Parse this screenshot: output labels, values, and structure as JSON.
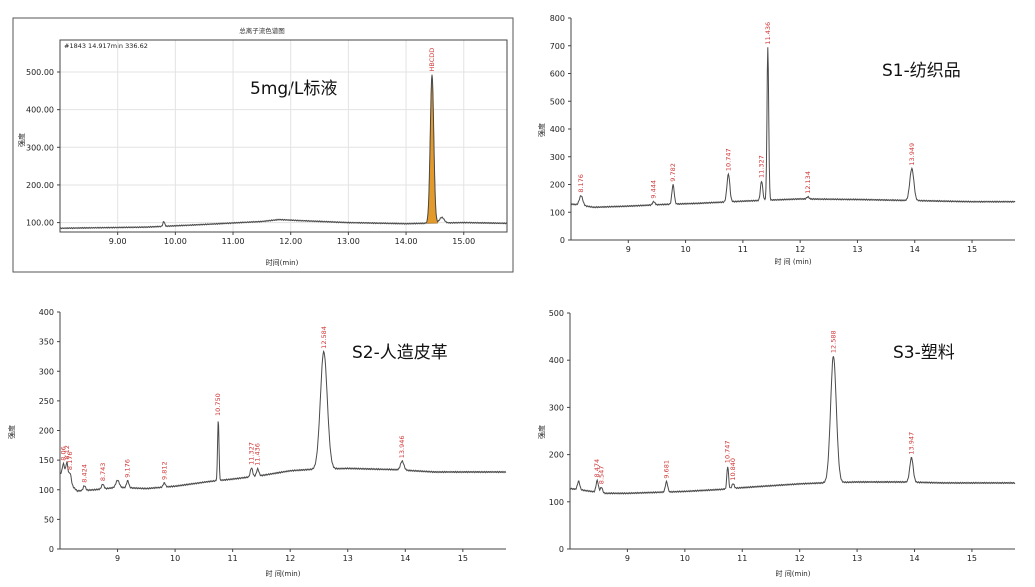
{
  "chart_data": [
    {
      "type": "line",
      "id": "c1",
      "title": "5mg/L标液",
      "subtitle": "总离子流色谱图",
      "info": "#1843  14.917min  336.62",
      "xlabel": "时间(min)",
      "ylabel": "强度",
      "xlim": [
        8.0,
        15.75
      ],
      "ylim": [
        75,
        585
      ],
      "xticks": [
        9.0,
        10.0,
        11.0,
        12.0,
        13.0,
        14.0,
        15.0
      ],
      "xtick_labels": [
        "9.00",
        "10.00",
        "11.00",
        "12.00",
        "13.00",
        "14.00",
        "15.00"
      ],
      "yticks": [
        100,
        200,
        300,
        400,
        500
      ],
      "ytick_labels": [
        "100.00",
        "200.00",
        "300.00",
        "400.00",
        "500.00"
      ],
      "baseline": [
        [
          8.0,
          85
        ],
        [
          9.5,
          88
        ],
        [
          10.5,
          95
        ],
        [
          11.5,
          103
        ],
        [
          11.8,
          108
        ],
        [
          12.2,
          105
        ],
        [
          13.0,
          100
        ],
        [
          14.0,
          97
        ],
        [
          15.0,
          100
        ],
        [
          15.75,
          98
        ]
      ],
      "peaks": [
        {
          "x": 9.8,
          "height": 13,
          "width": 0.015,
          "label": ""
        },
        {
          "x": 14.45,
          "height": 395,
          "width": 0.03,
          "label": "HBCDD",
          "filled": true
        },
        {
          "x": 14.62,
          "height": 15,
          "width": 0.04,
          "label": ""
        }
      ],
      "fill_color": "#e39a2b"
    },
    {
      "type": "line",
      "id": "c2",
      "title": "S1-纺织品",
      "xlabel": "时 间 (min)",
      "ylabel": "强度",
      "xlim": [
        8.0,
        15.75
      ],
      "ylim": [
        0,
        800
      ],
      "xticks": [
        9,
        10,
        11,
        12,
        13,
        14,
        15
      ],
      "xtick_labels": [
        "9",
        "10",
        "11",
        "12",
        "13",
        "14",
        "15"
      ],
      "yticks": [
        0,
        100,
        200,
        300,
        400,
        500,
        600,
        700,
        800
      ],
      "ytick_labels": [
        "0",
        "100",
        "200",
        "300",
        "400",
        "500",
        "600",
        "700",
        "800"
      ],
      "baseline": [
        [
          8.0,
          130
        ],
        [
          8.4,
          118
        ],
        [
          9.0,
          122
        ],
        [
          9.6,
          128
        ],
        [
          10.2,
          132
        ],
        [
          11.0,
          140
        ],
        [
          12.0,
          148
        ],
        [
          13.0,
          146
        ],
        [
          14.0,
          142
        ],
        [
          15.0,
          138
        ],
        [
          15.75,
          138
        ]
      ],
      "peaks": [
        {
          "x": 8.176,
          "height": 35,
          "width": 0.03,
          "label": "8.176"
        },
        {
          "x": 9.444,
          "height": 12,
          "width": 0.02,
          "label": "9.444"
        },
        {
          "x": 9.782,
          "height": 70,
          "width": 0.02,
          "label": "9.782"
        },
        {
          "x": 10.747,
          "height": 100,
          "width": 0.025,
          "label": "10.747"
        },
        {
          "x": 11.327,
          "height": 70,
          "width": 0.02,
          "label": "11.327"
        },
        {
          "x": 11.436,
          "height": 550,
          "width": 0.015,
          "label": "11.436"
        },
        {
          "x": 12.134,
          "height": 8,
          "width": 0.02,
          "label": "12.134"
        },
        {
          "x": 13.949,
          "height": 115,
          "width": 0.035,
          "label": "13.949"
        }
      ]
    },
    {
      "type": "line",
      "id": "c3",
      "title": "S2-人造皮革",
      "xlabel": "时 间(min)",
      "ylabel": "强度",
      "xlim": [
        8.0,
        15.75
      ],
      "ylim": [
        0,
        400
      ],
      "xticks": [
        9,
        10,
        11,
        12,
        13,
        14,
        15
      ],
      "xtick_labels": [
        "9",
        "10",
        "11",
        "12",
        "13",
        "14",
        "15"
      ],
      "yticks": [
        0,
        50,
        100,
        150,
        200,
        250,
        300,
        350,
        400
      ],
      "ytick_labels": [
        "0",
        "50",
        "100",
        "150",
        "200",
        "250",
        "300",
        "350",
        "400"
      ],
      "baseline": [
        [
          8.0,
          128
        ],
        [
          8.15,
          112
        ],
        [
          8.3,
          98
        ],
        [
          8.6,
          100
        ],
        [
          9.0,
          104
        ],
        [
          9.5,
          102
        ],
        [
          10.0,
          106
        ],
        [
          10.6,
          114
        ],
        [
          11.0,
          118
        ],
        [
          11.5,
          124
        ],
        [
          12.0,
          132
        ],
        [
          12.3,
          134
        ],
        [
          13.0,
          136
        ],
        [
          13.8,
          134
        ],
        [
          14.5,
          130
        ],
        [
          15.75,
          130
        ]
      ],
      "peaks": [
        {
          "x": 8.06,
          "height": 22,
          "width": 0.02,
          "label": "8.06"
        },
        {
          "x": 8.12,
          "height": 30,
          "width": 0.02,
          "label": "8.12"
        },
        {
          "x": 8.176,
          "height": 18,
          "width": 0.02,
          "label": "8.176"
        },
        {
          "x": 8.424,
          "height": 8,
          "width": 0.02,
          "label": "8.424"
        },
        {
          "x": 8.743,
          "height": 8,
          "width": 0.02,
          "label": "8.743"
        },
        {
          "x": 9.0,
          "height": 12,
          "width": 0.03,
          "label": ""
        },
        {
          "x": 9.176,
          "height": 12,
          "width": 0.02,
          "label": "9.176"
        },
        {
          "x": 9.812,
          "height": 7,
          "width": 0.02,
          "label": "9.812"
        },
        {
          "x": 10.75,
          "height": 104,
          "width": 0.012,
          "label": "10.750"
        },
        {
          "x": 11.327,
          "height": 15,
          "width": 0.02,
          "label": "11.327"
        },
        {
          "x": 11.436,
          "height": 12,
          "width": 0.02,
          "label": "11.436"
        },
        {
          "x": 12.584,
          "height": 198,
          "width": 0.06,
          "label": "12.584"
        },
        {
          "x": 13.946,
          "height": 15,
          "width": 0.03,
          "label": "13.946"
        }
      ]
    },
    {
      "type": "line",
      "id": "c4",
      "title": "S3-塑料",
      "xlabel": "时 间(min)",
      "ylabel": "强度",
      "xlim": [
        8.0,
        15.75
      ],
      "ylim": [
        0,
        500
      ],
      "xticks": [
        9,
        10,
        11,
        12,
        13,
        14,
        15
      ],
      "xtick_labels": [
        "9",
        "10",
        "11",
        "12",
        "13",
        "14",
        "15"
      ],
      "yticks": [
        0,
        100,
        200,
        300,
        400,
        500
      ],
      "ytick_labels": [
        "0",
        "100",
        "200",
        "300",
        "400",
        "500"
      ],
      "baseline": [
        [
          8.0,
          128
        ],
        [
          8.2,
          125
        ],
        [
          8.6,
          118
        ],
        [
          9.0,
          118
        ],
        [
          9.5,
          120
        ],
        [
          10.0,
          122
        ],
        [
          10.6,
          126
        ],
        [
          11.0,
          130
        ],
        [
          11.5,
          134
        ],
        [
          12.0,
          138
        ],
        [
          12.4,
          140
        ],
        [
          13.0,
          142
        ],
        [
          13.8,
          142
        ],
        [
          14.5,
          140
        ],
        [
          15.75,
          140
        ]
      ],
      "peaks": [
        {
          "x": 8.15,
          "height": 18,
          "width": 0.02,
          "label": ""
        },
        {
          "x": 8.474,
          "height": 25,
          "width": 0.02,
          "label": "8.474"
        },
        {
          "x": 8.547,
          "height": 12,
          "width": 0.02,
          "label": "8.547"
        },
        {
          "x": 9.681,
          "height": 22,
          "width": 0.02,
          "label": "9.681"
        },
        {
          "x": 10.747,
          "height": 48,
          "width": 0.015,
          "label": "10.747"
        },
        {
          "x": 10.84,
          "height": 10,
          "width": 0.02,
          "label": "10.840"
        },
        {
          "x": 12.588,
          "height": 268,
          "width": 0.05,
          "label": "12.588"
        },
        {
          "x": 13.947,
          "height": 52,
          "width": 0.03,
          "label": "13.947"
        }
      ]
    }
  ]
}
